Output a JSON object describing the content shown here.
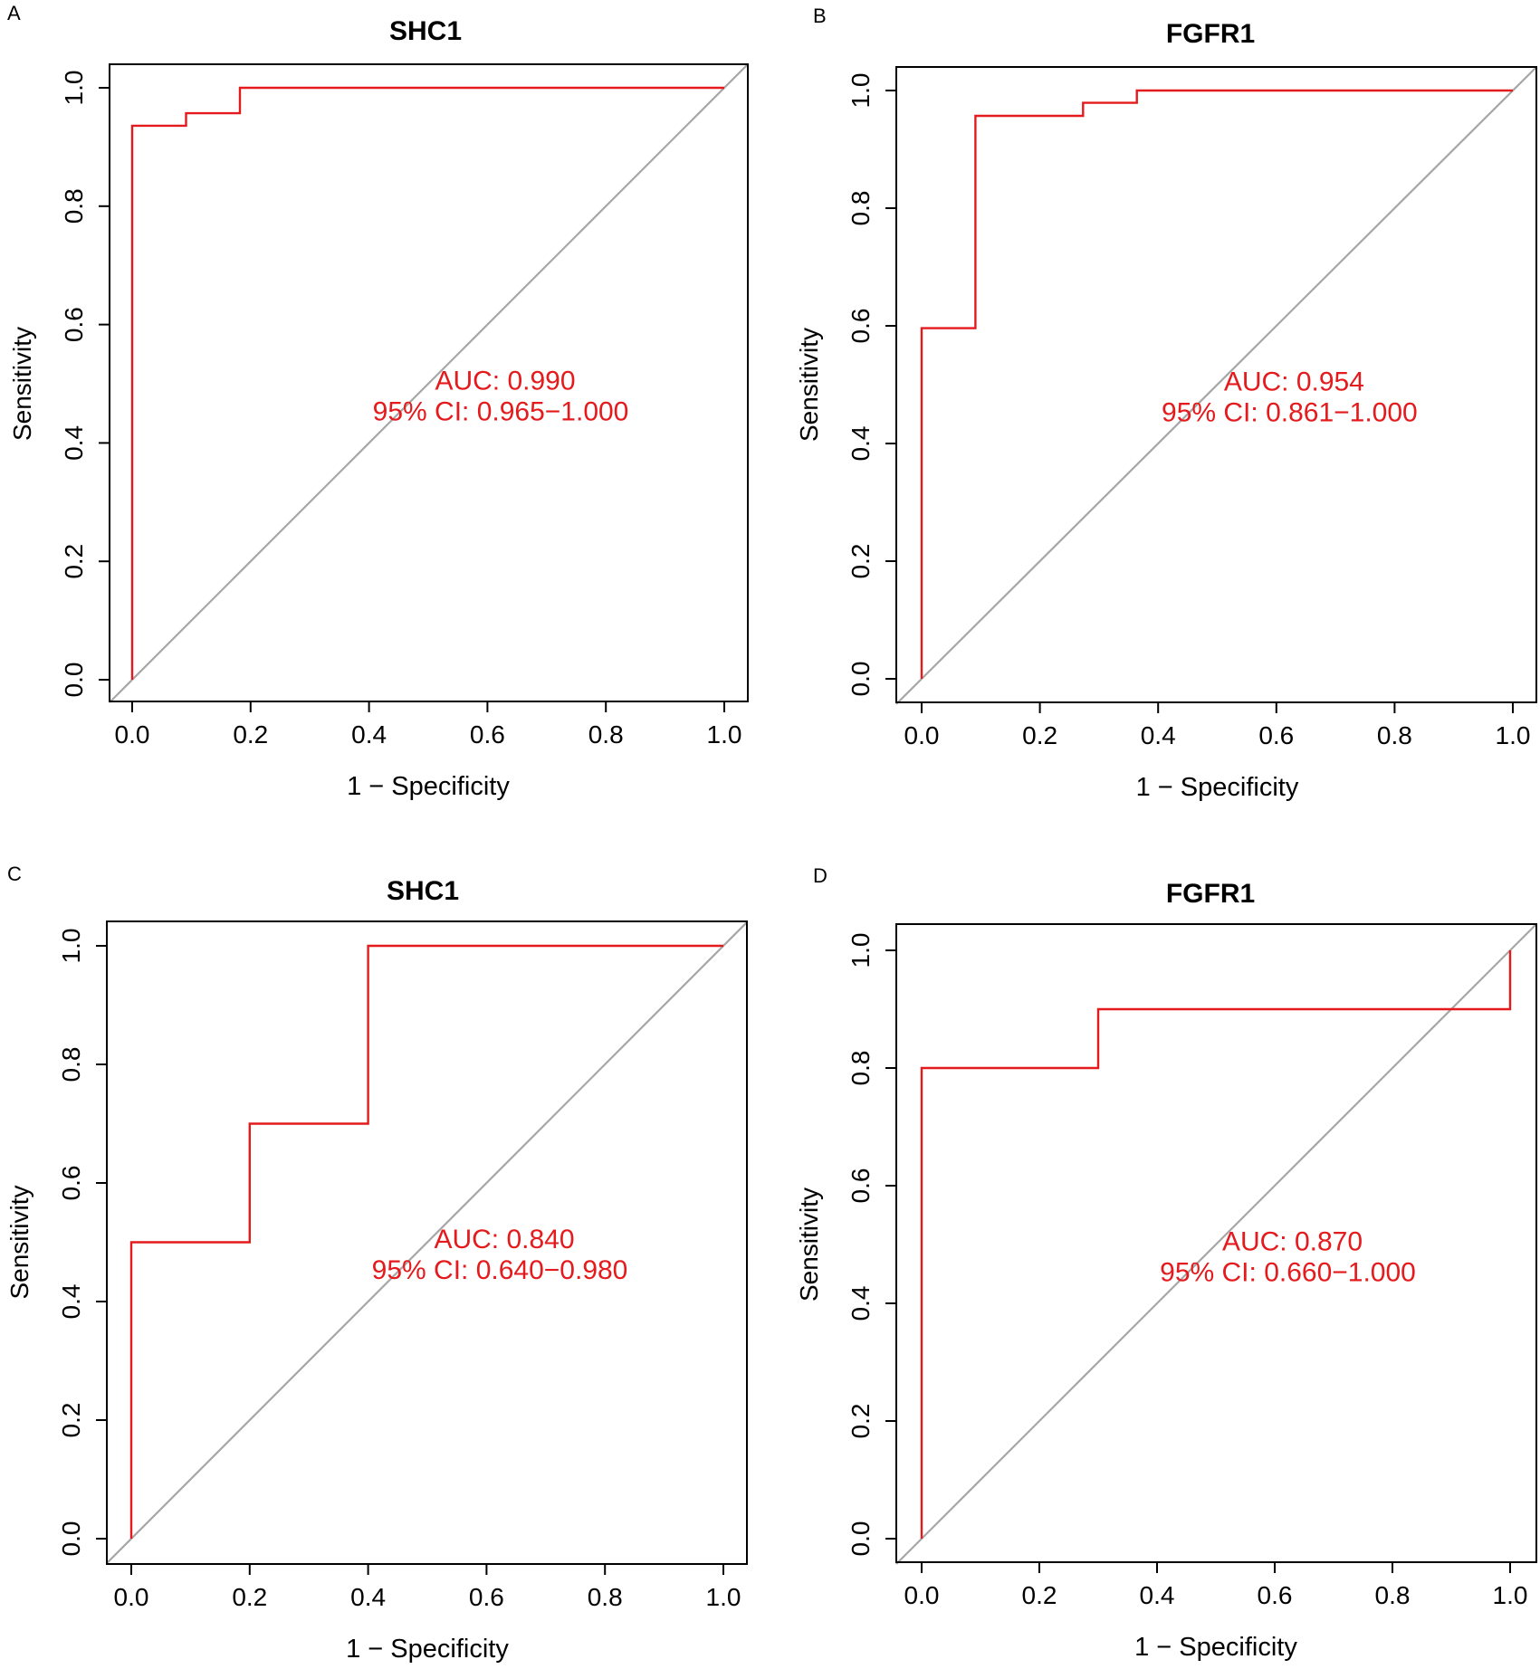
{
  "figure": {
    "panels": [
      "A",
      "B",
      "C",
      "D"
    ]
  },
  "colors": {
    "roc_curve": "#e41a1c",
    "diagonal": "#a6a6a6",
    "frame": "#000000"
  },
  "chart_data": [
    {
      "type": "line",
      "panel_label": "A",
      "title": "SHC1",
      "xlabel": "1 − Specificity",
      "ylabel": "Sensitivity",
      "xlim": [
        0.0,
        1.0
      ],
      "ylim": [
        0.0,
        1.0
      ],
      "xticks": [
        "0.0",
        "0.2",
        "0.4",
        "0.6",
        "0.8",
        "1.0"
      ],
      "yticks": [
        "0.0",
        "0.2",
        "0.4",
        "0.6",
        "0.8",
        "1.0"
      ],
      "series": [
        {
          "name": "ROC",
          "x": [
            0.0,
            0.0,
            0.091,
            0.091,
            0.182,
            0.182,
            1.0
          ],
          "y": [
            0.0,
            0.936,
            0.936,
            0.957,
            0.957,
            1.0,
            1.0
          ]
        }
      ],
      "annotation": {
        "auc": "AUC: 0.990",
        "ci": "95% CI: 0.965−1.000"
      }
    },
    {
      "type": "line",
      "panel_label": "B",
      "title": "FGFR1",
      "xlabel": "1 − Specificity",
      "ylabel": "Sensitivity",
      "xlim": [
        0.0,
        1.0
      ],
      "ylim": [
        0.0,
        1.0
      ],
      "xticks": [
        "0.0",
        "0.2",
        "0.4",
        "0.6",
        "0.8",
        "1.0"
      ],
      "yticks": [
        "0.0",
        "0.2",
        "0.4",
        "0.6",
        "0.8",
        "1.0"
      ],
      "series": [
        {
          "name": "ROC",
          "x": [
            0.0,
            0.0,
            0.091,
            0.091,
            0.273,
            0.273,
            0.364,
            0.364,
            1.0
          ],
          "y": [
            0.0,
            0.596,
            0.596,
            0.957,
            0.957,
            0.979,
            0.979,
            1.0,
            1.0
          ]
        }
      ],
      "annotation": {
        "auc": "AUC: 0.954",
        "ci": "95% CI: 0.861−1.000"
      }
    },
    {
      "type": "line",
      "panel_label": "C",
      "title": "SHC1",
      "xlabel": "1 − Specificity",
      "ylabel": "Sensitivity",
      "xlim": [
        0.0,
        1.0
      ],
      "ylim": [
        0.0,
        1.0
      ],
      "xticks": [
        "0.0",
        "0.2",
        "0.4",
        "0.6",
        "0.8",
        "1.0"
      ],
      "yticks": [
        "0.0",
        "0.2",
        "0.4",
        "0.6",
        "0.8",
        "1.0"
      ],
      "series": [
        {
          "name": "ROC",
          "x": [
            0.0,
            0.0,
            0.2,
            0.2,
            0.4,
            0.4,
            1.0
          ],
          "y": [
            0.0,
            0.5,
            0.5,
            0.7,
            0.7,
            1.0,
            1.0
          ]
        }
      ],
      "annotation": {
        "auc": "AUC: 0.840",
        "ci": "95% CI: 0.640−0.980"
      }
    },
    {
      "type": "line",
      "panel_label": "D",
      "title": "FGFR1",
      "xlabel": "1 − Specificity",
      "ylabel": "Sensitivity",
      "xlim": [
        0.0,
        1.0
      ],
      "ylim": [
        0.0,
        1.0
      ],
      "xticks": [
        "0.0",
        "0.2",
        "0.4",
        "0.6",
        "0.8",
        "1.0"
      ],
      "yticks": [
        "0.0",
        "0.2",
        "0.4",
        "0.6",
        "0.8",
        "1.0"
      ],
      "series": [
        {
          "name": "ROC",
          "x": [
            0.0,
            0.0,
            0.3,
            0.3,
            1.0,
            1.0
          ],
          "y": [
            0.0,
            0.8,
            0.8,
            0.9,
            0.9,
            1.0
          ]
        }
      ],
      "annotation": {
        "auc": "AUC: 0.870",
        "ci": "95% CI: 0.660−1.000"
      }
    }
  ]
}
